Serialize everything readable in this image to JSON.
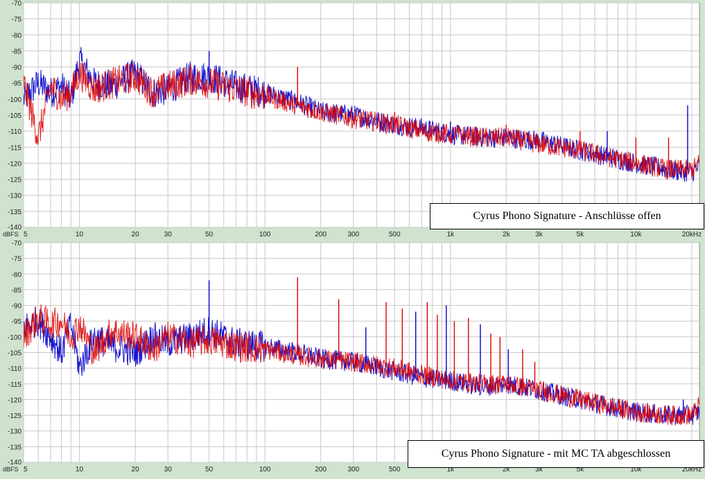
{
  "colors": {
    "background": "#cfe3cf",
    "plot_background": "#ffffff",
    "grid": "#c8c8c8",
    "series_1": "#0000cc",
    "series_2": "#dd0000"
  },
  "chart_data": [
    {
      "type": "line",
      "title": "Cyrus Phono Signature - Anschlüsse offen",
      "xlabel": "",
      "ylabel": "dBFS",
      "xscale": "log",
      "xlim": [
        5,
        22000
      ],
      "ylim": [
        -140,
        -70
      ],
      "legend": "bottom-right",
      "grid": true,
      "yticks": [
        -70,
        -75,
        -80,
        -85,
        -90,
        -95,
        -100,
        -105,
        -110,
        -115,
        -120,
        -125,
        -130,
        -135,
        -140
      ],
      "xticks": [
        {
          "value": 5,
          "label": "5"
        },
        {
          "value": 10,
          "label": "10"
        },
        {
          "value": 20,
          "label": "20"
        },
        {
          "value": 30,
          "label": "30"
        },
        {
          "value": 50,
          "label": "50"
        },
        {
          "value": 100,
          "label": "100"
        },
        {
          "value": 200,
          "label": "200"
        },
        {
          "value": 300,
          "label": "300"
        },
        {
          "value": 500,
          "label": "500"
        },
        {
          "value": 1000,
          "label": "1k"
        },
        {
          "value": 2000,
          "label": "2k"
        },
        {
          "value": 3000,
          "label": "3k"
        },
        {
          "value": 5000,
          "label": "5k"
        },
        {
          "value": 10000,
          "label": "10k"
        },
        {
          "value": 20000,
          "label": "20kHz"
        }
      ],
      "series": [
        {
          "color": "#0000cc",
          "x": [
            5,
            6,
            7,
            8,
            9,
            10,
            12,
            15,
            20,
            25,
            30,
            40,
            50,
            70,
            100,
            150,
            200,
            300,
            500,
            700,
            1000,
            1500,
            2000,
            3000,
            5000,
            7000,
            10000,
            15000,
            20000,
            22000
          ],
          "y": [
            -100,
            -95,
            -98,
            -96,
            -100,
            -88,
            -95,
            -96,
            -92,
            -98,
            -97,
            -93,
            -93,
            -96,
            -98,
            -101,
            -104,
            -105,
            -108,
            -109,
            -111,
            -112,
            -112,
            -113,
            -116,
            -118,
            -120,
            -122,
            -123,
            -121
          ]
        },
        {
          "color": "#dd0000",
          "x": [
            5,
            6,
            7,
            8,
            9,
            10,
            12,
            15,
            20,
            25,
            30,
            40,
            50,
            70,
            100,
            150,
            200,
            300,
            500,
            700,
            1000,
            1500,
            2000,
            3000,
            5000,
            7000,
            10000,
            15000,
            20000,
            22000
          ],
          "y": [
            -95,
            -112,
            -96,
            -100,
            -98,
            -92,
            -97,
            -95,
            -93,
            -98,
            -96,
            -94,
            -95,
            -97,
            -99,
            -102,
            -104,
            -106,
            -108,
            -110,
            -111,
            -112,
            -112,
            -114,
            -116,
            -118,
            -120,
            -122,
            -122,
            -120
          ]
        }
      ],
      "peaks": [
        {
          "x": 50,
          "y": -85
        },
        {
          "x": 150,
          "y": -90
        },
        {
          "x": 500,
          "y": -104
        },
        {
          "x": 1000,
          "y": -107
        },
        {
          "x": 2000,
          "y": -108
        },
        {
          "x": 5000,
          "y": -110
        },
        {
          "x": 7000,
          "y": -110
        },
        {
          "x": 10000,
          "y": -112
        },
        {
          "x": 15000,
          "y": -112
        },
        {
          "x": 19000,
          "y": -102
        }
      ]
    },
    {
      "type": "line",
      "title": "Cyrus Phono Signature - mit MC TA abgeschlossen",
      "xlabel": "",
      "ylabel": "dBFS",
      "xscale": "log",
      "xlim": [
        5,
        22000
      ],
      "ylim": [
        -140,
        -70
      ],
      "legend": "bottom-right",
      "grid": true,
      "yticks": [
        -70,
        -75,
        -80,
        -85,
        -90,
        -95,
        -100,
        -105,
        -110,
        -115,
        -120,
        -125,
        -130,
        -135,
        -140
      ],
      "xticks": [
        {
          "value": 5,
          "label": "5"
        },
        {
          "value": 10,
          "label": "10"
        },
        {
          "value": 20,
          "label": "20"
        },
        {
          "value": 30,
          "label": "30"
        },
        {
          "value": 50,
          "label": "50"
        },
        {
          "value": 100,
          "label": "100"
        },
        {
          "value": 200,
          "label": "200"
        },
        {
          "value": 300,
          "label": "300"
        },
        {
          "value": 500,
          "label": "500"
        },
        {
          "value": 1000,
          "label": "1k"
        },
        {
          "value": 2000,
          "label": "2k"
        },
        {
          "value": 3000,
          "label": "3k"
        },
        {
          "value": 5000,
          "label": "5k"
        },
        {
          "value": 10000,
          "label": "10k"
        },
        {
          "value": 20000,
          "label": "20kHz"
        }
      ],
      "series": [
        {
          "color": "#0000cc",
          "x": [
            5,
            6,
            7,
            8,
            9,
            10,
            12,
            15,
            20,
            25,
            30,
            40,
            50,
            70,
            100,
            150,
            200,
            300,
            500,
            700,
            1000,
            1500,
            2000,
            3000,
            5000,
            7000,
            10000,
            15000,
            20000,
            22000
          ],
          "y": [
            -97,
            -95,
            -100,
            -105,
            -96,
            -110,
            -100,
            -103,
            -105,
            -100,
            -102,
            -100,
            -98,
            -102,
            -103,
            -105,
            -107,
            -108,
            -111,
            -113,
            -114,
            -116,
            -115,
            -117,
            -120,
            -122,
            -124,
            -125,
            -125,
            -124
          ]
        },
        {
          "color": "#dd0000",
          "x": [
            5,
            6,
            7,
            8,
            9,
            10,
            12,
            15,
            20,
            25,
            30,
            40,
            50,
            70,
            100,
            150,
            200,
            300,
            500,
            700,
            1000,
            1500,
            2000,
            3000,
            5000,
            7000,
            10000,
            15000,
            20000,
            22000
          ],
          "y": [
            -100,
            -94,
            -96,
            -95,
            -100,
            -96,
            -105,
            -98,
            -100,
            -104,
            -100,
            -102,
            -101,
            -103,
            -104,
            -106,
            -107,
            -108,
            -110,
            -112,
            -114,
            -115,
            -115,
            -117,
            -120,
            -122,
            -124,
            -125,
            -125,
            -122
          ]
        }
      ],
      "peaks": [
        {
          "x": 50,
          "y": -82
        },
        {
          "x": 150,
          "y": -81
        },
        {
          "x": 250,
          "y": -88
        },
        {
          "x": 350,
          "y": -97
        },
        {
          "x": 450,
          "y": -89
        },
        {
          "x": 550,
          "y": -91
        },
        {
          "x": 650,
          "y": -92
        },
        {
          "x": 750,
          "y": -89
        },
        {
          "x": 850,
          "y": -93
        },
        {
          "x": 950,
          "y": -90
        },
        {
          "x": 1050,
          "y": -95
        },
        {
          "x": 1250,
          "y": -94
        },
        {
          "x": 1450,
          "y": -96
        },
        {
          "x": 1650,
          "y": -99
        },
        {
          "x": 1850,
          "y": -100
        },
        {
          "x": 2050,
          "y": -104
        },
        {
          "x": 2450,
          "y": -104
        },
        {
          "x": 2850,
          "y": -108
        },
        {
          "x": 18000,
          "y": -120
        }
      ]
    }
  ]
}
